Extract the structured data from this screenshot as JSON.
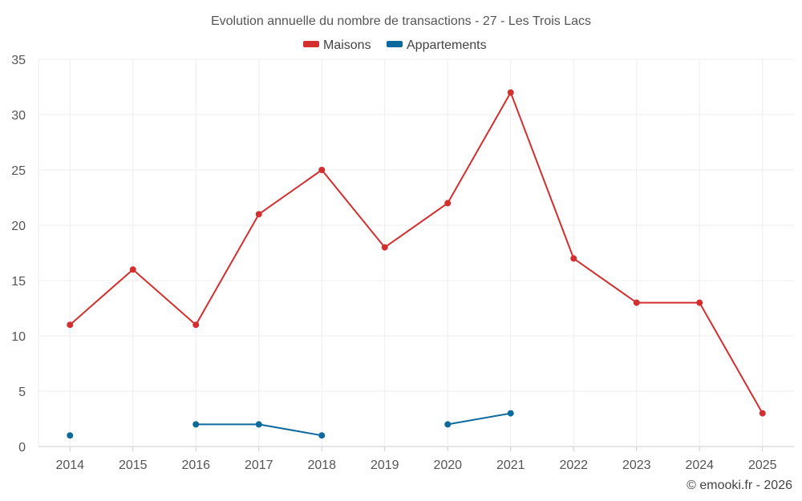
{
  "chart_data": {
    "type": "line",
    "title": "Evolution annuelle du nombre de transactions - 27 - Les Trois Lacs",
    "categories": [
      "2014",
      "2015",
      "2016",
      "2017",
      "2018",
      "2019",
      "2020",
      "2021",
      "2022",
      "2023",
      "2024",
      "2025"
    ],
    "ylim": [
      0,
      35
    ],
    "yticks": [
      0,
      5,
      10,
      15,
      20,
      25,
      30,
      35
    ],
    "grid": true,
    "legend_position": "top-center",
    "series": [
      {
        "name": "Maisons",
        "color": "#d32f2f",
        "values": [
          11,
          16,
          11,
          21,
          25,
          18,
          22,
          32,
          17,
          13,
          13,
          3
        ]
      },
      {
        "name": "Appartements",
        "color": "#0d6a9e",
        "values": [
          1,
          null,
          2,
          2,
          1,
          null,
          2,
          3,
          null,
          null,
          null,
          null
        ]
      }
    ]
  },
  "credit": "© emooki.fr - 2026"
}
